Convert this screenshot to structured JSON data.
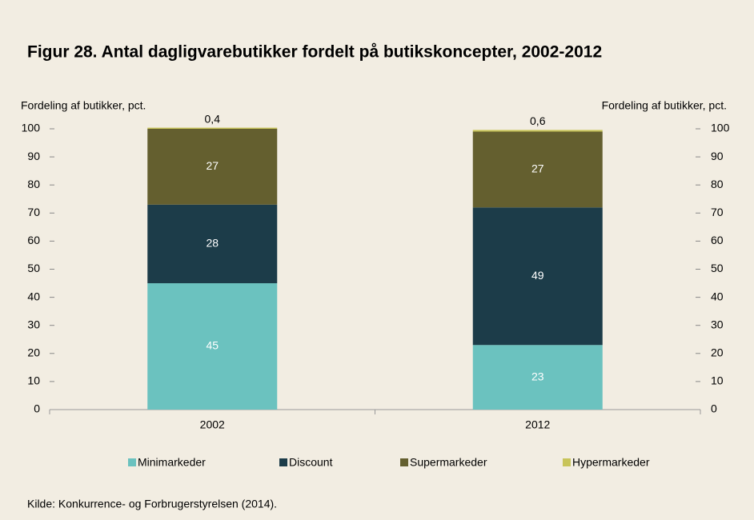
{
  "chart_data": {
    "type": "stacked_bar",
    "title": "Figur 28. Antal dagligvarebutikker fordelt på butikskoncepter, 2002-2012",
    "ylabel": "Fordeling af butikker, pct.",
    "y2label": "Fordeling af butikker, pct.",
    "categories": [
      "2002",
      "2012"
    ],
    "series": [
      {
        "name": "Minimarkeder",
        "color": "#6bc2bf",
        "values": [
          45,
          23
        ],
        "value_labels": [
          "45",
          "23"
        ]
      },
      {
        "name": "Discount",
        "color": "#1c3c49",
        "values": [
          28,
          49
        ],
        "value_labels": [
          "28",
          "49"
        ]
      },
      {
        "name": "Supermarkeder",
        "color": "#645f2f",
        "values": [
          27,
          27
        ],
        "value_labels": [
          "27",
          "27"
        ]
      },
      {
        "name": "Hypermarkeder",
        "color": "#c8c45a",
        "values": [
          0.4,
          0.6
        ],
        "value_labels": [
          "0,4",
          "0,6"
        ]
      }
    ],
    "ylim": [
      0,
      100
    ],
    "yticks": [
      0,
      10,
      20,
      30,
      40,
      50,
      60,
      70,
      80,
      90,
      100
    ],
    "y2lim": [
      0,
      100
    ],
    "y2ticks": [
      0,
      10,
      20,
      30,
      40,
      50,
      60,
      70,
      80,
      90,
      100
    ],
    "legend": "bottom",
    "source": "Kilde: Konkurrence- og Forbrugerstyrelsen (2014)."
  }
}
